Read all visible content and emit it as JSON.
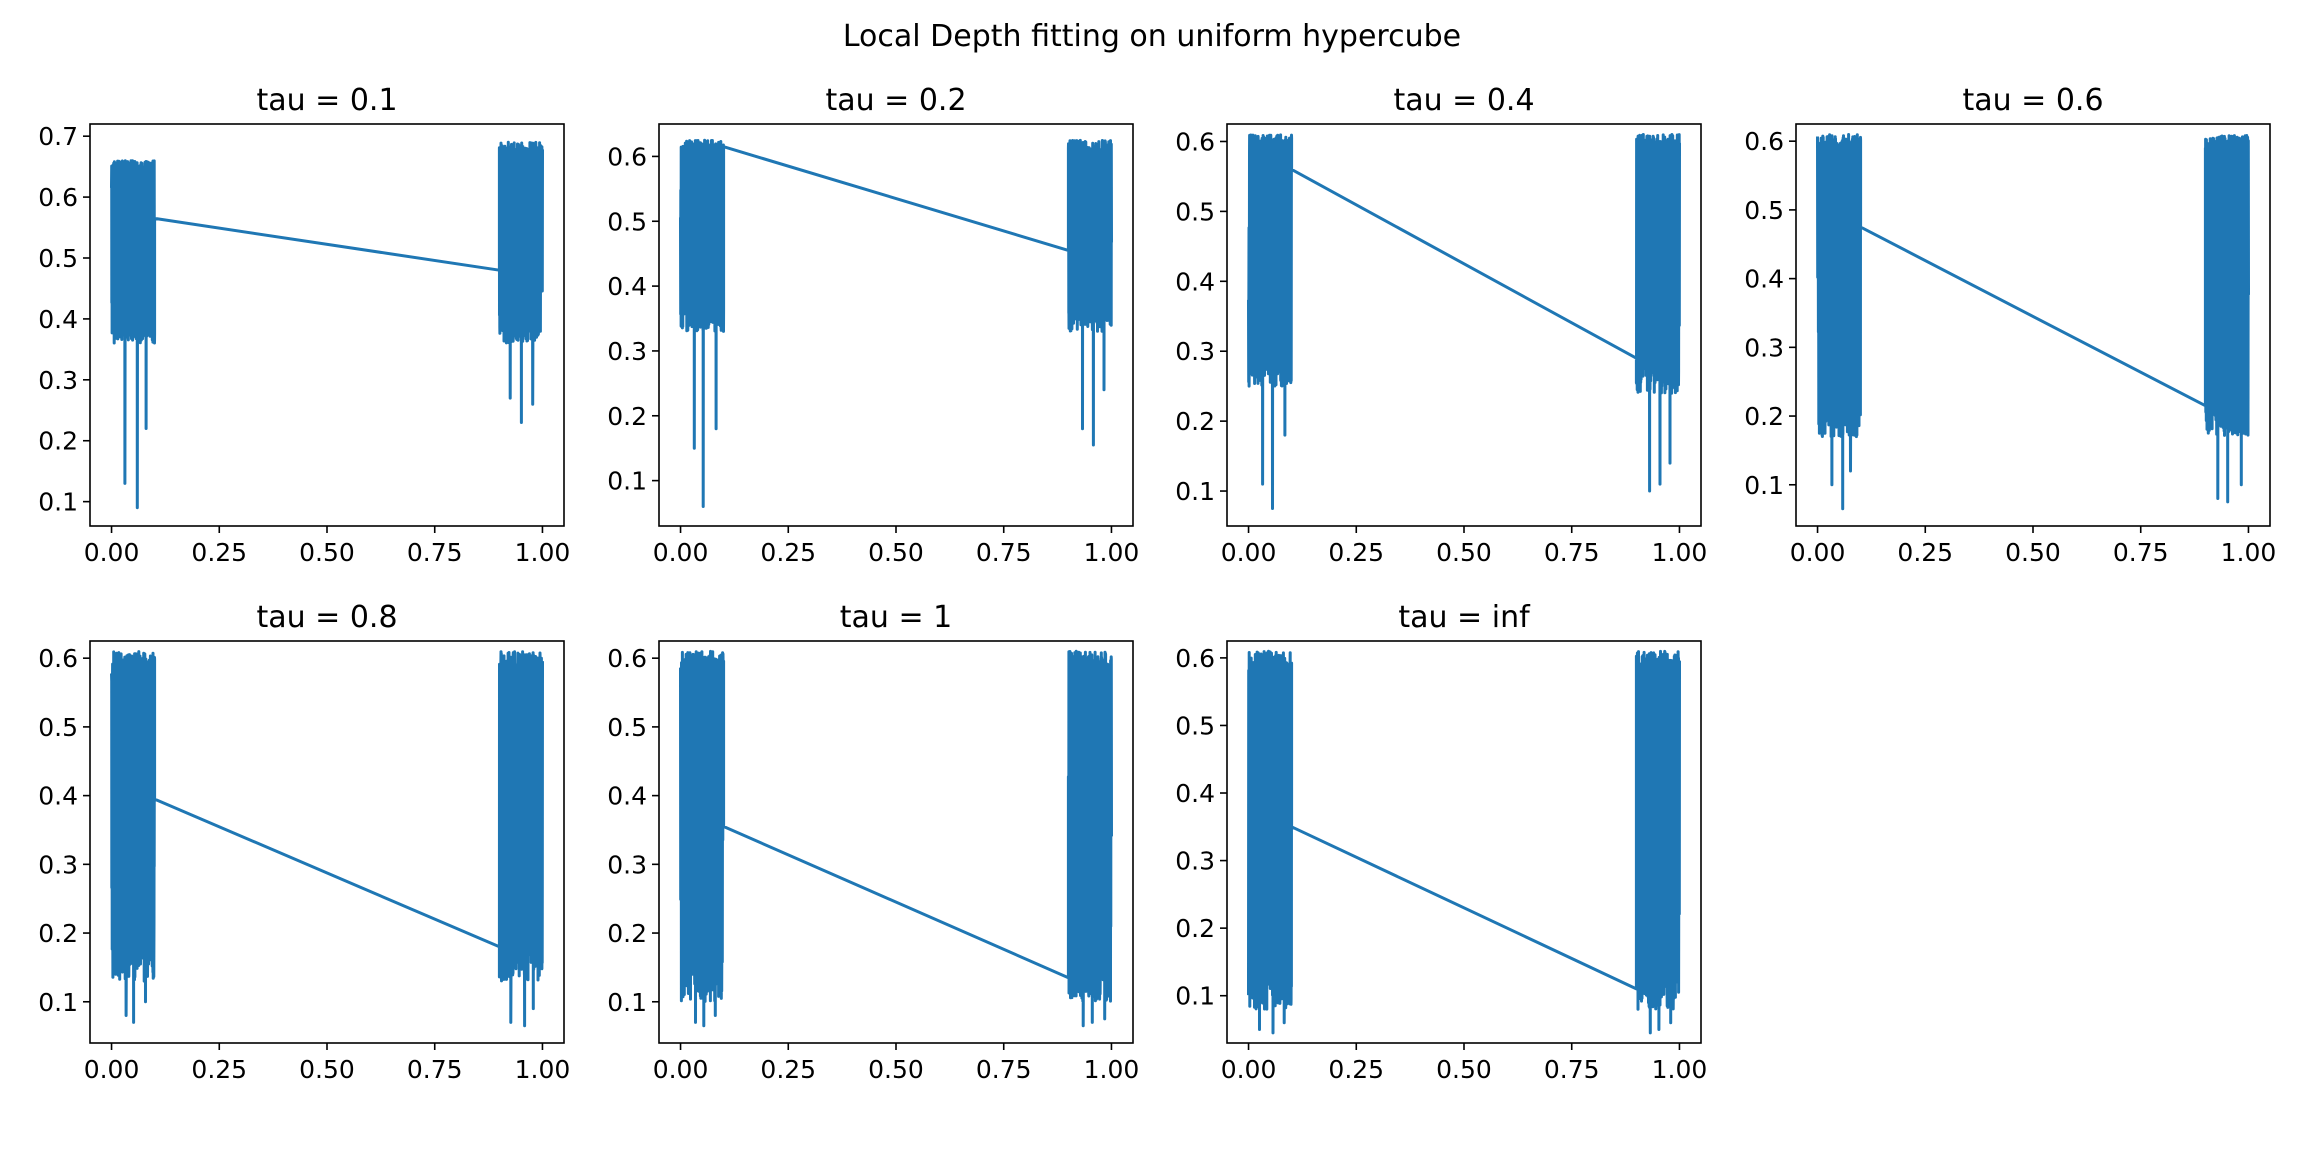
{
  "figure": {
    "title": "Local Depth fitting on uniform hypercube",
    "line_color": "#1f77b4"
  },
  "chart_data": [
    {
      "type": "line",
      "title": "tau = 0.1",
      "xlabel": "",
      "ylabel": "",
      "xlim": [
        -0.05,
        1.05
      ],
      "ylim": [
        0.06,
        0.72
      ],
      "xticks": [
        "0.00",
        "0.25",
        "0.50",
        "0.75",
        "1.00"
      ],
      "yticks": [
        "0.1",
        "0.2",
        "0.3",
        "0.4",
        "0.5",
        "0.6",
        "0.7"
      ],
      "clusters": [
        {
          "x_range": [
            0.0,
            0.1
          ],
          "y_range": [
            0.36,
            0.66
          ],
          "dips": [
            0.13,
            0.09,
            0.22
          ]
        },
        {
          "x_range": [
            0.9,
            1.0
          ],
          "y_range": [
            0.36,
            0.69
          ],
          "dips": [
            0.27,
            0.23,
            0.26
          ]
        }
      ],
      "connector": {
        "x": [
          0.1,
          0.9
        ],
        "y": [
          0.565,
          0.48
        ]
      }
    },
    {
      "type": "line",
      "title": "tau = 0.2",
      "xlabel": "",
      "ylabel": "",
      "xlim": [
        -0.05,
        1.05
      ],
      "ylim": [
        0.03,
        0.65
      ],
      "xticks": [
        "0.00",
        "0.25",
        "0.50",
        "0.75",
        "1.00"
      ],
      "yticks": [
        "0.1",
        "0.2",
        "0.3",
        "0.4",
        "0.5",
        "0.6"
      ],
      "clusters": [
        {
          "x_range": [
            0.0,
            0.1
          ],
          "y_range": [
            0.33,
            0.625
          ],
          "dips": [
            0.15,
            0.06,
            0.18
          ]
        },
        {
          "x_range": [
            0.9,
            1.0
          ],
          "y_range": [
            0.33,
            0.625
          ],
          "dips": [
            0.18,
            0.155,
            0.24
          ]
        }
      ],
      "connector": {
        "x": [
          0.1,
          0.9
        ],
        "y": [
          0.615,
          0.455
        ]
      }
    },
    {
      "type": "line",
      "title": "tau = 0.4",
      "xlabel": "",
      "ylabel": "",
      "xlim": [
        -0.05,
        1.05
      ],
      "ylim": [
        0.05,
        0.625
      ],
      "xticks": [
        "0.00",
        "0.25",
        "0.50",
        "0.75",
        "1.00"
      ],
      "yticks": [
        "0.1",
        "0.2",
        "0.3",
        "0.4",
        "0.5",
        "0.6"
      ],
      "clusters": [
        {
          "x_range": [
            0.0,
            0.1
          ],
          "y_range": [
            0.25,
            0.61
          ],
          "dips": [
            0.11,
            0.075,
            0.18
          ]
        },
        {
          "x_range": [
            0.9,
            1.0
          ],
          "y_range": [
            0.24,
            0.61
          ],
          "dips": [
            0.1,
            0.11,
            0.14
          ]
        }
      ],
      "connector": {
        "x": [
          0.1,
          0.9
        ],
        "y": [
          0.56,
          0.29
        ]
      }
    },
    {
      "type": "line",
      "title": "tau = 0.6",
      "xlabel": "",
      "ylabel": "",
      "xlim": [
        -0.05,
        1.05
      ],
      "ylim": [
        0.04,
        0.625
      ],
      "xticks": [
        "0.00",
        "0.25",
        "0.50",
        "0.75",
        "1.00"
      ],
      "yticks": [
        "0.1",
        "0.2",
        "0.3",
        "0.4",
        "0.5",
        "0.6"
      ],
      "clusters": [
        {
          "x_range": [
            0.0,
            0.1
          ],
          "y_range": [
            0.17,
            0.61
          ],
          "dips": [
            0.1,
            0.065,
            0.12
          ]
        },
        {
          "x_range": [
            0.9,
            1.0
          ],
          "y_range": [
            0.17,
            0.61
          ],
          "dips": [
            0.08,
            0.075,
            0.1
          ]
        }
      ],
      "connector": {
        "x": [
          0.1,
          0.9
        ],
        "y": [
          0.475,
          0.215
        ]
      }
    },
    {
      "type": "line",
      "title": "tau = 0.8",
      "xlabel": "",
      "ylabel": "",
      "xlim": [
        -0.05,
        1.05
      ],
      "ylim": [
        0.04,
        0.625
      ],
      "xticks": [
        "0.00",
        "0.25",
        "0.50",
        "0.75",
        "1.00"
      ],
      "yticks": [
        "0.1",
        "0.2",
        "0.3",
        "0.4",
        "0.5",
        "0.6"
      ],
      "clusters": [
        {
          "x_range": [
            0.0,
            0.1
          ],
          "y_range": [
            0.13,
            0.61
          ],
          "dips": [
            0.08,
            0.07,
            0.1
          ]
        },
        {
          "x_range": [
            0.9,
            1.0
          ],
          "y_range": [
            0.13,
            0.61
          ],
          "dips": [
            0.07,
            0.065,
            0.09
          ]
        }
      ],
      "connector": {
        "x": [
          0.1,
          0.9
        ],
        "y": [
          0.395,
          0.18
        ]
      }
    },
    {
      "type": "line",
      "title": "tau = 1",
      "xlabel": "",
      "ylabel": "",
      "xlim": [
        -0.05,
        1.05
      ],
      "ylim": [
        0.04,
        0.625
      ],
      "xticks": [
        "0.00",
        "0.25",
        "0.50",
        "0.75",
        "1.00"
      ],
      "yticks": [
        "0.1",
        "0.2",
        "0.3",
        "0.4",
        "0.5",
        "0.6"
      ],
      "clusters": [
        {
          "x_range": [
            0.0,
            0.1
          ],
          "y_range": [
            0.1,
            0.61
          ],
          "dips": [
            0.07,
            0.065,
            0.08
          ]
        },
        {
          "x_range": [
            0.9,
            1.0
          ],
          "y_range": [
            0.1,
            0.61
          ],
          "dips": [
            0.065,
            0.07,
            0.075
          ]
        }
      ],
      "connector": {
        "x": [
          0.1,
          0.9
        ],
        "y": [
          0.355,
          0.135
        ]
      }
    },
    {
      "type": "line",
      "title": "tau = inf",
      "xlabel": "",
      "ylabel": "",
      "xlim": [
        -0.05,
        1.05
      ],
      "ylim": [
        0.03,
        0.625
      ],
      "xticks": [
        "0.00",
        "0.25",
        "0.50",
        "0.75",
        "1.00"
      ],
      "yticks": [
        "0.1",
        "0.2",
        "0.3",
        "0.4",
        "0.5",
        "0.6"
      ],
      "clusters": [
        {
          "x_range": [
            0.0,
            0.1
          ],
          "y_range": [
            0.08,
            0.61
          ],
          "dips": [
            0.05,
            0.045,
            0.06
          ]
        },
        {
          "x_range": [
            0.9,
            1.0
          ],
          "y_range": [
            0.08,
            0.61
          ],
          "dips": [
            0.045,
            0.05,
            0.06
          ]
        }
      ],
      "connector": {
        "x": [
          0.1,
          0.9
        ],
        "y": [
          0.35,
          0.11
        ]
      }
    }
  ]
}
